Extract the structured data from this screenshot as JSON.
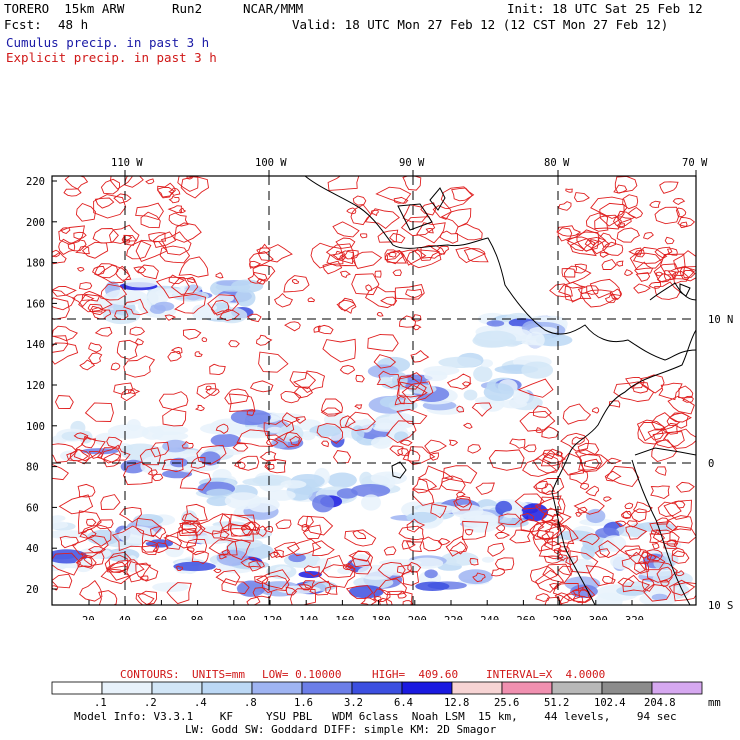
{
  "header": {
    "model": "TORERO  15km ARW",
    "run": "Run2",
    "center": "NCAR/MMM",
    "init": "Init: 18 UTC Sat 25 Feb 12",
    "fcst_label": "Fcst:",
    "fcst_value": "48 h",
    "valid": "Valid: 18 UTC Mon 27 Feb 12 (12 CST Mon 27 Feb 12)",
    "legend_cumulus": "Cumulus precip. in past 3 h",
    "legend_explicit": "Explicit precip. in past 3 h"
  },
  "axes": {
    "lon_labels": [
      "110 W",
      "100 W",
      "90 W",
      "80 W",
      "70 W"
    ],
    "lat_labels": [
      "10 N",
      "0",
      "10 S"
    ],
    "y_ticks": [
      "220",
      "200",
      "180",
      "160",
      "140",
      "120",
      "100",
      "80",
      "60",
      "40",
      "20"
    ],
    "x_ticks": [
      "20",
      "40",
      "60",
      "80",
      "100",
      "120",
      "140",
      "160",
      "180",
      "200",
      "220",
      "240",
      "260",
      "280",
      "300",
      "320"
    ]
  },
  "contours_info": {
    "label": "CONTOURS:",
    "units": "UNITS=mm",
    "low": "LOW= 0.10000",
    "high": "HIGH=  409.60",
    "interval": "INTERVAL=X  4.0000"
  },
  "colorbar": {
    "labels": [
      ".1",
      ".2",
      ".4",
      ".8",
      "1.6",
      "3.2",
      "6.4",
      "12.8",
      "25.6",
      "51.2",
      "102.4",
      "204.8"
    ],
    "unit": "mm",
    "colors": [
      "#ffffff",
      "#e8f2fb",
      "#d2e6f7",
      "#bcd8f5",
      "#9fb4f2",
      "#6c7ee8",
      "#3c4fe0",
      "#1a1ae0",
      "#f7d4d4",
      "#f090b0",
      "#b8b8b8",
      "#8c8c8c",
      "#d6a8f0"
    ]
  },
  "footer": {
    "line1": "Model Info: V3.3.1    KF     YSU PBL   WDM 6class  Noah LSM  15 km,    44 levels,    94 sec",
    "line2": "LW: Godd SW: Goddard DIFF: simple KM: 2D Smagor"
  },
  "colors": {
    "cumulus_text": "#1a1aa6",
    "explicit_text": "#d01818",
    "contour": "#e02020",
    "grid": "#000000"
  }
}
